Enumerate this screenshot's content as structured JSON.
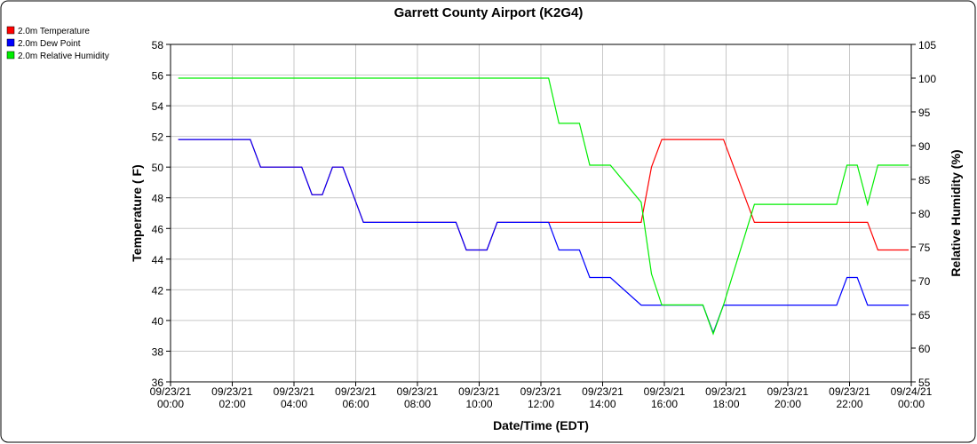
{
  "chart_data": {
    "type": "line",
    "title": "Garrett County Airport (K2G4)",
    "x_label": "Date/Time (EDT)",
    "y_label": "Temperature ( F)",
    "y2_label": "Relative Humidity (%)",
    "x": [
      "09/23/21 00:15",
      "09/23/21 02:35",
      "09/23/21 02:55",
      "09/23/21 04:15",
      "09/23/21 04:35",
      "09/23/21 04:55",
      "09/23/21 05:15",
      "09/23/21 05:35",
      "09/23/21 06:15",
      "09/23/21 09:15",
      "09/23/21 09:35",
      "09/23/21 10:15",
      "09/23/21 10:35",
      "09/23/21 12:15",
      "09/23/21 12:35",
      "09/23/21 13:15",
      "09/23/21 13:35",
      "09/23/21 14:15",
      "09/23/21 15:15",
      "09/23/21 15:35",
      "09/23/21 15:55",
      "09/23/21 17:15",
      "09/23/21 17:35",
      "09/23/21 17:55",
      "09/23/21 18:55",
      "09/23/21 21:35",
      "09/23/21 21:55",
      "09/23/21 22:15",
      "09/23/21 22:35",
      "09/23/21 22:55",
      "09/23/21 23:55"
    ],
    "series": [
      {
        "name": "2.0m Temperature",
        "color": "#ff0000",
        "values": [
          51.8,
          51.8,
          50,
          50,
          48.2,
          48.2,
          50,
          50,
          46.4,
          46.4,
          44.6,
          44.6,
          46.4,
          46.4,
          46.4,
          46.4,
          46.4,
          46.4,
          46.4,
          50,
          51.8,
          51.8,
          51.8,
          51.8,
          46.4,
          46.4,
          46.4,
          46.4,
          46.4,
          44.6,
          44.6
        ]
      },
      {
        "name": "2.0m Dew Point",
        "color": "#0000ff",
        "values": [
          51.8,
          51.8,
          50,
          50,
          48.2,
          48.2,
          50,
          50,
          46.4,
          46.4,
          44.6,
          44.6,
          46.4,
          46.4,
          44.6,
          44.6,
          42.8,
          42.8,
          41,
          41,
          41,
          41,
          39.2,
          41,
          41,
          41,
          42.8,
          42.8,
          41,
          41,
          41
        ]
      },
      {
        "name": "2.0m Relative Humidity",
        "color": "#00ee00",
        "axis": "y2",
        "values": [
          100,
          100,
          100,
          100,
          100,
          100,
          100,
          100,
          100,
          100,
          100,
          100,
          100,
          100,
          93.3,
          93.3,
          87.1,
          87.1,
          81.6,
          71,
          66.4,
          66.4,
          62.1,
          66.4,
          81.3,
          81.3,
          87.1,
          87.1,
          81.3,
          87.1,
          87.1
        ]
      }
    ],
    "xlim": [
      "09/23/21 00:00",
      "09/24/21 00:00"
    ],
    "xticks": [
      "09/23/21 00:00",
      "09/23/21 02:00",
      "09/23/21 04:00",
      "09/23/21 06:00",
      "09/23/21 08:00",
      "09/23/21 10:00",
      "09/23/21 12:00",
      "09/23/21 14:00",
      "09/23/21 16:00",
      "09/23/21 18:00",
      "09/23/21 20:00",
      "09/23/21 22:00",
      "09/24/21 00:00"
    ],
    "ylim": [
      36,
      58
    ],
    "yticks": [
      36,
      38,
      40,
      42,
      44,
      46,
      48,
      50,
      52,
      54,
      56,
      58
    ],
    "y2lim": [
      55,
      105
    ],
    "y2ticks": [
      55,
      60,
      65,
      70,
      75,
      80,
      85,
      90,
      95,
      100,
      105
    ],
    "grid": true,
    "legend": "top-left"
  }
}
